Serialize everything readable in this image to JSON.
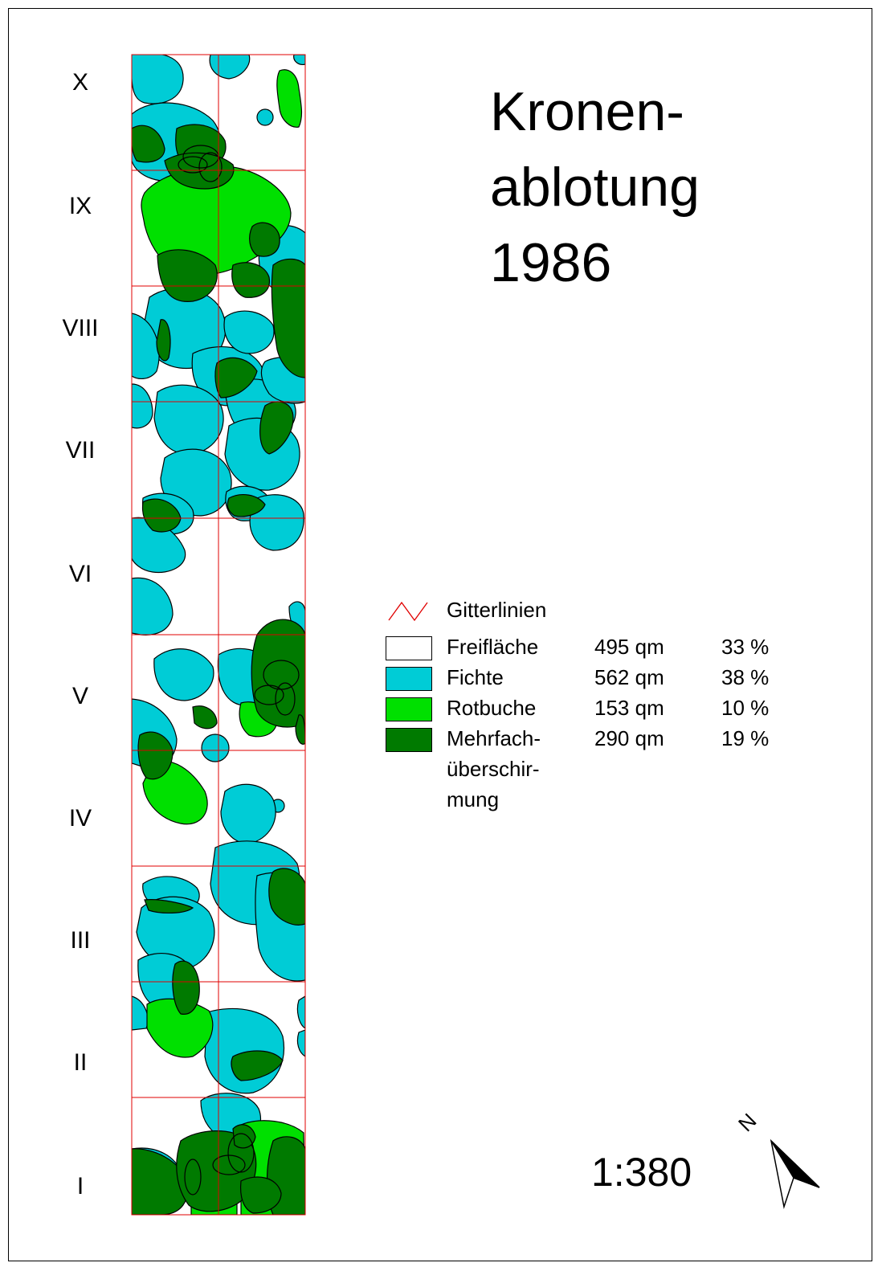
{
  "title_lines": [
    "Kronen-",
    "ablotung",
    "1986"
  ],
  "row_labels": [
    "X",
    "IX",
    "VIII",
    "VII",
    "VI",
    "V",
    "IV",
    "III",
    "II",
    "I"
  ],
  "colors": {
    "freiflaeche": "#ffffff",
    "fichte": "#00ccd6",
    "rotbuche": "#00e000",
    "mehrfach": "#007a00",
    "grid": "#e00000",
    "outline": "#000000"
  },
  "legend": {
    "grid_label": "Gitterlinien",
    "items": [
      {
        "key": "freiflaeche",
        "label": "Freifläche",
        "area": "495 qm",
        "percent": "33 %"
      },
      {
        "key": "fichte",
        "label": "Fichte",
        "area": "562 qm",
        "percent": "38 %"
      },
      {
        "key": "rotbuche",
        "label": "Rotbuche",
        "area": "153 qm",
        "percent": "10 %"
      },
      {
        "key": "mehrfach",
        "label": "Mehrfach-",
        "area": "290 qm",
        "percent": "19 %"
      }
    ],
    "mehrfach_continuation": [
      "überschir-",
      "mung"
    ]
  },
  "scale": "1:380",
  "north_label": "N",
  "north_icon": "north-arrow-icon"
}
